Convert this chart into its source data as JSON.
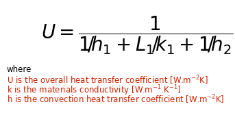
{
  "background_color": "#ffffff",
  "color_formula": "#000000",
  "color_where": "#000000",
  "color_U": "#cc2200",
  "color_k": "#cc2200",
  "color_h": "#cc2200",
  "fontsize_formula": 20,
  "fontsize_text": 8.5,
  "figsize": [
    3.43,
    2.0
  ],
  "dpi": 100
}
